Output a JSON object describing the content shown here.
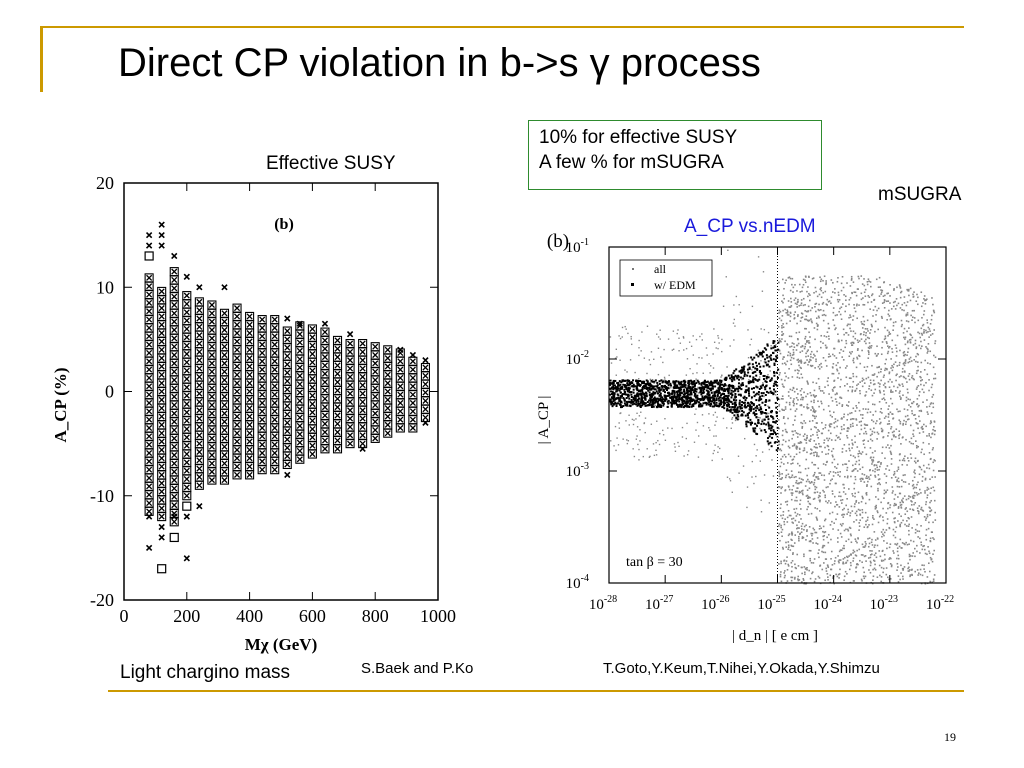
{
  "slide": {
    "title": "Direct CP violation in b->s γ process",
    "page_number": "19",
    "note_line1": "10% for effective SUSY",
    "note_line2": "A few % for mSUGRA",
    "label_effective_susy": "Effective SUSY",
    "label_msugra": "mSUGRA",
    "label_acp_vs_nedm": "A_CP vs.nEDM",
    "label_light_chargino": "Light chargino mass",
    "ref_left": "S.Baek and P.Ko",
    "ref_right": "T.Goto,Y.Keum,T.Nihei,Y.Okada,Y.Shimzu",
    "accent_color": "#cc9900",
    "note_border_color": "#2e8b2e",
    "blue_label_color": "#1a1adb"
  },
  "chart_data": [
    {
      "type": "scatter",
      "panel_label": "(b)",
      "xlabel": "Mχ (GeV)",
      "ylabel": "A_CP (%)",
      "xlim": [
        0,
        1000
      ],
      "ylim": [
        -20,
        20
      ],
      "xticks": [
        0,
        200,
        400,
        600,
        800,
        1000
      ],
      "yticks": [
        -20,
        -10,
        0,
        10,
        20
      ],
      "series": [
        {
          "marker": "boxed-x",
          "x": [
            80,
            120,
            160,
            200,
            240,
            280,
            320,
            360,
            400,
            440,
            480,
            520,
            560,
            600,
            640,
            680,
            720,
            760,
            800,
            840,
            880,
            920,
            960
          ],
          "ymax": [
            11,
            10,
            12,
            9.5,
            9,
            8.5,
            8,
            8,
            7.5,
            7.5,
            7,
            6.5,
            6.5,
            6,
            6,
            5.5,
            5,
            5,
            4.5,
            4.5,
            4,
            3.5,
            2.5
          ],
          "ymin": [
            -11.5,
            -12,
            -12.5,
            -10,
            -9,
            -8.5,
            -8.5,
            -8,
            -8,
            -7.5,
            -7.5,
            -7,
            -6.5,
            -6,
            -5.5,
            -5.5,
            -5,
            -5,
            -4.5,
            -4,
            -3.5,
            -3.5,
            -2.5
          ]
        },
        {
          "marker": "x",
          "points": [
            [
              80,
              -15
            ],
            [
              80,
              14
            ],
            [
              80,
              15
            ],
            [
              120,
              16
            ],
            [
              120,
              15
            ],
            [
              120,
              14
            ],
            [
              80,
              -12
            ],
            [
              120,
              -13
            ],
            [
              120,
              -14
            ],
            [
              160,
              13
            ],
            [
              160,
              -12
            ],
            [
              200,
              -16
            ],
            [
              200,
              11
            ],
            [
              200,
              -12
            ],
            [
              240,
              10
            ],
            [
              240,
              -11
            ],
            [
              320,
              10
            ],
            [
              520,
              7
            ],
            [
              520,
              -8
            ],
            [
              560,
              6.5
            ],
            [
              640,
              6.5
            ],
            [
              720,
              5.5
            ],
            [
              760,
              -5.5
            ],
            [
              880,
              4
            ],
            [
              960,
              3
            ],
            [
              960,
              -3
            ],
            [
              920,
              3.5
            ]
          ]
        },
        {
          "marker": "open-square",
          "points": [
            [
              80,
              13
            ],
            [
              120,
              -17
            ],
            [
              160,
              -14
            ],
            [
              200,
              -11
            ]
          ]
        }
      ]
    },
    {
      "type": "scatter",
      "panel_label": "(b)",
      "xlabel": "| d_n |  [ e cm ]",
      "ylabel": "| A_CP |",
      "xscale": "log",
      "yscale": "log",
      "xlim": [
        1e-28,
        1e-22
      ],
      "ylim": [
        0.0001,
        0.1
      ],
      "xtick_labels": [
        "10^-28",
        "10^-27",
        "10^-26",
        "10^-25",
        "10^-24",
        "10^-23",
        "10^-22"
      ],
      "ytick_labels": [
        "10^-4",
        "10^-3",
        "10^-2",
        "10^-1"
      ],
      "vline": 1e-25,
      "annotation": "tan β = 30",
      "legend": [
        "all",
        "w/ EDM"
      ],
      "legend_position": "top-left",
      "series": [
        {
          "name": "all",
          "marker": "dot-small",
          "description_band_center": 0.005
        },
        {
          "name": "w/ EDM",
          "marker": "dot",
          "description_band_center": 0.005
        }
      ]
    }
  ]
}
